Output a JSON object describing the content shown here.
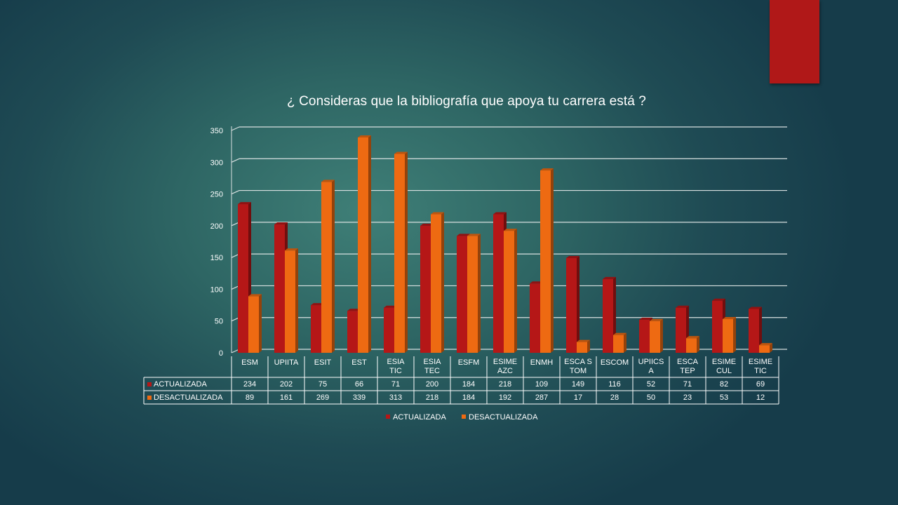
{
  "chart_data": {
    "type": "bar",
    "title": "¿ Consideras que la bibliografía que apoya tu carrera está ?",
    "categories": [
      [
        "ESM"
      ],
      [
        "UPIITA"
      ],
      [
        "ESIT"
      ],
      [
        "EST"
      ],
      [
        "ESIA",
        "TIC"
      ],
      [
        "ESIA",
        "TEC"
      ],
      [
        "ESFM"
      ],
      [
        "ESIME",
        "AZC"
      ],
      [
        "ENMH"
      ],
      [
        "ESCA S",
        "TOM"
      ],
      [
        "ESCOM"
      ],
      [
        "UPIICS",
        "A"
      ],
      [
        "ESCA",
        "TEP"
      ],
      [
        "ESIME",
        "CUL"
      ],
      [
        "ESIME",
        "TIC"
      ]
    ],
    "series": [
      {
        "name": "ACTUALIZADA",
        "color": "#b51717",
        "values": [
          234,
          202,
          75,
          66,
          71,
          200,
          184,
          218,
          109,
          149,
          116,
          52,
          71,
          82,
          69
        ]
      },
      {
        "name": "DESACTUALIZADA",
        "color": "#ee6a12",
        "values": [
          89,
          161,
          269,
          339,
          313,
          218,
          184,
          192,
          287,
          17,
          28,
          50,
          23,
          53,
          12
        ]
      }
    ],
    "ylim": [
      0,
      350
    ],
    "yticks": [
      "0",
      "50",
      "100",
      "150",
      "200",
      "250",
      "300",
      "350"
    ],
    "grid": true,
    "legend_position": "bottom",
    "data_table": true
  }
}
